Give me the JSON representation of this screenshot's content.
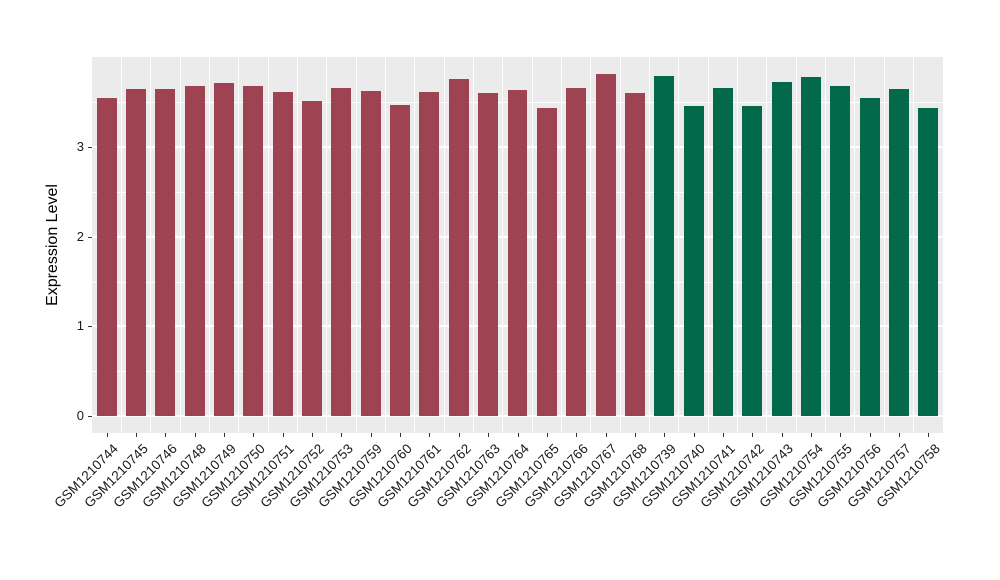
{
  "figure": {
    "background_color": "#FFFFFF",
    "panel_background_color": "#EBEBEB",
    "gridline_color": "#FFFFFF",
    "tick_mark_color": "#333333",
    "axis_text_color": "#1A1A1A"
  },
  "chart_data": {
    "type": "bar",
    "title": "",
    "xlabel": "",
    "ylabel": "Expression Level",
    "ylim": [
      0,
      4.0
    ],
    "yticks": [
      0,
      1,
      2,
      3
    ],
    "yticks_minor": [
      0.5,
      1.5,
      2.5,
      3.5
    ],
    "grid": "on",
    "legend": "none",
    "x_label_rotation_deg": 45,
    "group_colors": {
      "maroon": "#9D4352",
      "green": "#026A4B"
    },
    "bars": [
      {
        "label": "GSM1210744",
        "value": 3.55,
        "group": "maroon"
      },
      {
        "label": "GSM1210745",
        "value": 3.65,
        "group": "maroon"
      },
      {
        "label": "GSM1210746",
        "value": 3.65,
        "group": "maroon"
      },
      {
        "label": "GSM1210748",
        "value": 3.68,
        "group": "maroon"
      },
      {
        "label": "GSM1210749",
        "value": 3.72,
        "group": "maroon"
      },
      {
        "label": "GSM1210750",
        "value": 3.68,
        "group": "maroon"
      },
      {
        "label": "GSM1210751",
        "value": 3.62,
        "group": "maroon"
      },
      {
        "label": "GSM1210752",
        "value": 3.52,
        "group": "maroon"
      },
      {
        "label": "GSM1210753",
        "value": 3.66,
        "group": "maroon"
      },
      {
        "label": "GSM1210759",
        "value": 3.63,
        "group": "maroon"
      },
      {
        "label": "GSM1210760",
        "value": 3.47,
        "group": "maroon"
      },
      {
        "label": "GSM1210761",
        "value": 3.62,
        "group": "maroon"
      },
      {
        "label": "GSM1210762",
        "value": 3.76,
        "group": "maroon"
      },
      {
        "label": "GSM1210763",
        "value": 3.61,
        "group": "maroon"
      },
      {
        "label": "GSM1210764",
        "value": 3.64,
        "group": "maroon"
      },
      {
        "label": "GSM1210765",
        "value": 3.44,
        "group": "maroon"
      },
      {
        "label": "GSM1210766",
        "value": 3.66,
        "group": "maroon"
      },
      {
        "label": "GSM1210767",
        "value": 3.82,
        "group": "maroon"
      },
      {
        "label": "GSM1210768",
        "value": 3.6,
        "group": "maroon"
      },
      {
        "label": "GSM1210739",
        "value": 3.79,
        "group": "green"
      },
      {
        "label": "GSM1210740",
        "value": 3.46,
        "group": "green"
      },
      {
        "label": "GSM1210741",
        "value": 3.66,
        "group": "green"
      },
      {
        "label": "GSM1210742",
        "value": 3.46,
        "group": "green"
      },
      {
        "label": "GSM1210743",
        "value": 3.73,
        "group": "green"
      },
      {
        "label": "GSM1210754",
        "value": 3.78,
        "group": "green"
      },
      {
        "label": "GSM1210755",
        "value": 3.68,
        "group": "green"
      },
      {
        "label": "GSM1210756",
        "value": 3.55,
        "group": "green"
      },
      {
        "label": "GSM1210757",
        "value": 3.65,
        "group": "green"
      },
      {
        "label": "GSM1210758",
        "value": 3.44,
        "group": "green"
      }
    ]
  }
}
